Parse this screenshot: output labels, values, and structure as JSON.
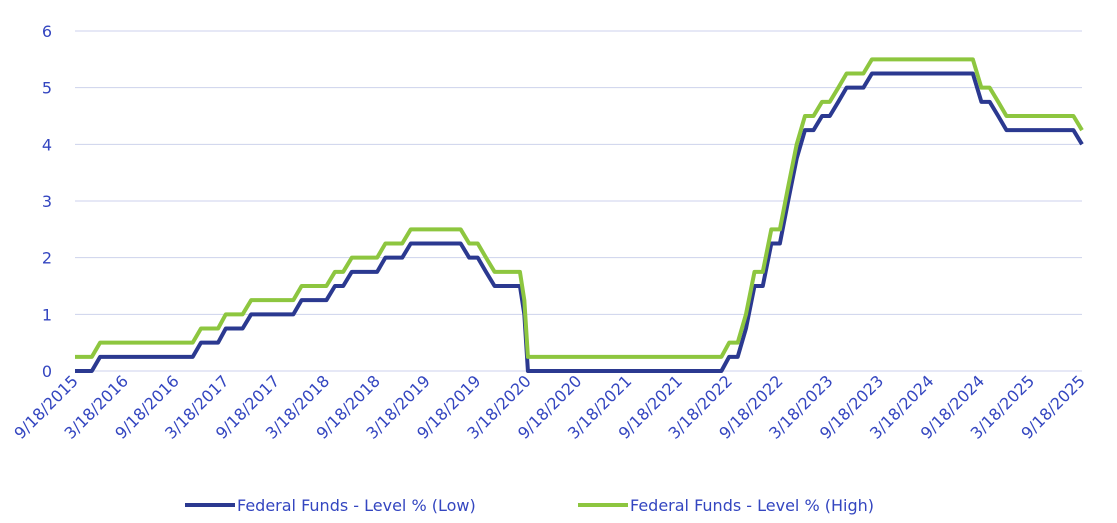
{
  "chart_data": {
    "type": "line",
    "x": [
      "9/18/2015",
      "11/18/2015",
      "12/18/2015",
      "11/18/2016",
      "12/18/2016",
      "2/18/2017",
      "3/18/2017",
      "5/18/2017",
      "6/18/2017",
      "11/18/2017",
      "12/18/2017",
      "3/18/2018",
      "4/18/2018",
      "5/18/2018",
      "6/18/2018",
      "9/18/2018",
      "10/18/2018",
      "12/18/2018",
      "1/18/2019",
      "7/18/2019",
      "8/18/2019",
      "9/18/2019",
      "10/18/2019",
      "11/18/2019",
      "2/18/2020",
      "3/5/2020",
      "3/18/2020",
      "2/18/2022",
      "3/18/2022",
      "4/18/2022",
      "5/18/2022",
      "6/18/2022",
      "7/18/2022",
      "8/18/2022",
      "9/18/2022",
      "10/18/2022",
      "11/18/2022",
      "12/18/2022",
      "1/18/2023",
      "2/18/2023",
      "3/18/2023",
      "4/18/2023",
      "5/18/2023",
      "7/18/2023",
      "8/18/2023",
      "8/18/2024",
      "9/18/2024",
      "10/18/2024",
      "11/18/2024",
      "12/18/2024",
      "8/18/2025",
      "9/18/2025"
    ],
    "series": [
      {
        "name": "Federal Funds - Level % (Low)",
        "color": "#2b3990",
        "values": [
          0,
          0,
          0.25,
          0.25,
          0.5,
          0.5,
          0.75,
          0.75,
          1,
          1,
          1.25,
          1.25,
          1.5,
          1.5,
          1.75,
          1.75,
          2,
          2,
          2.25,
          2.25,
          2,
          2,
          1.75,
          1.5,
          1.5,
          1,
          0,
          0,
          0.25,
          0.25,
          0.75,
          1.5,
          1.5,
          2.25,
          2.25,
          3,
          3.75,
          4.25,
          4.25,
          4.5,
          4.5,
          4.75,
          5,
          5,
          5.25,
          5.25,
          4.75,
          4.75,
          4.5,
          4.25,
          4.25,
          4
        ]
      },
      {
        "name": "Federal Funds - Level % (High)",
        "color": "#8dc63f",
        "values": [
          0.25,
          0.25,
          0.5,
          0.5,
          0.75,
          0.75,
          1,
          1,
          1.25,
          1.25,
          1.5,
          1.5,
          1.75,
          1.75,
          2,
          2,
          2.25,
          2.25,
          2.5,
          2.5,
          2.25,
          2.25,
          2,
          1.75,
          1.75,
          1.25,
          0.25,
          0.25,
          0.5,
          0.5,
          1,
          1.75,
          1.75,
          2.5,
          2.5,
          3.25,
          4,
          4.5,
          4.5,
          4.75,
          4.75,
          5,
          5.25,
          5.25,
          5.5,
          5.5,
          5,
          5,
          4.75,
          4.5,
          4.5,
          4.25
        ]
      }
    ],
    "xlim": [
      "9/18/2015",
      "9/18/2025"
    ],
    "xticks": [
      "9/18/2015",
      "3/18/2016",
      "9/18/2016",
      "3/18/2017",
      "9/18/2017",
      "3/18/2018",
      "9/18/2018",
      "3/18/2019",
      "9/18/2019",
      "3/18/2020",
      "9/18/2020",
      "3/18/2021",
      "9/18/2021",
      "3/18/2022",
      "9/18/2022",
      "3/18/2023",
      "9/18/2023",
      "3/18/2024",
      "9/18/2024",
      "3/18/2025",
      "9/18/2025"
    ],
    "ylim": [
      0,
      6
    ],
    "yticks": [
      0,
      1,
      2,
      3,
      4,
      5,
      6
    ],
    "grid": true,
    "legend": "bottom"
  }
}
